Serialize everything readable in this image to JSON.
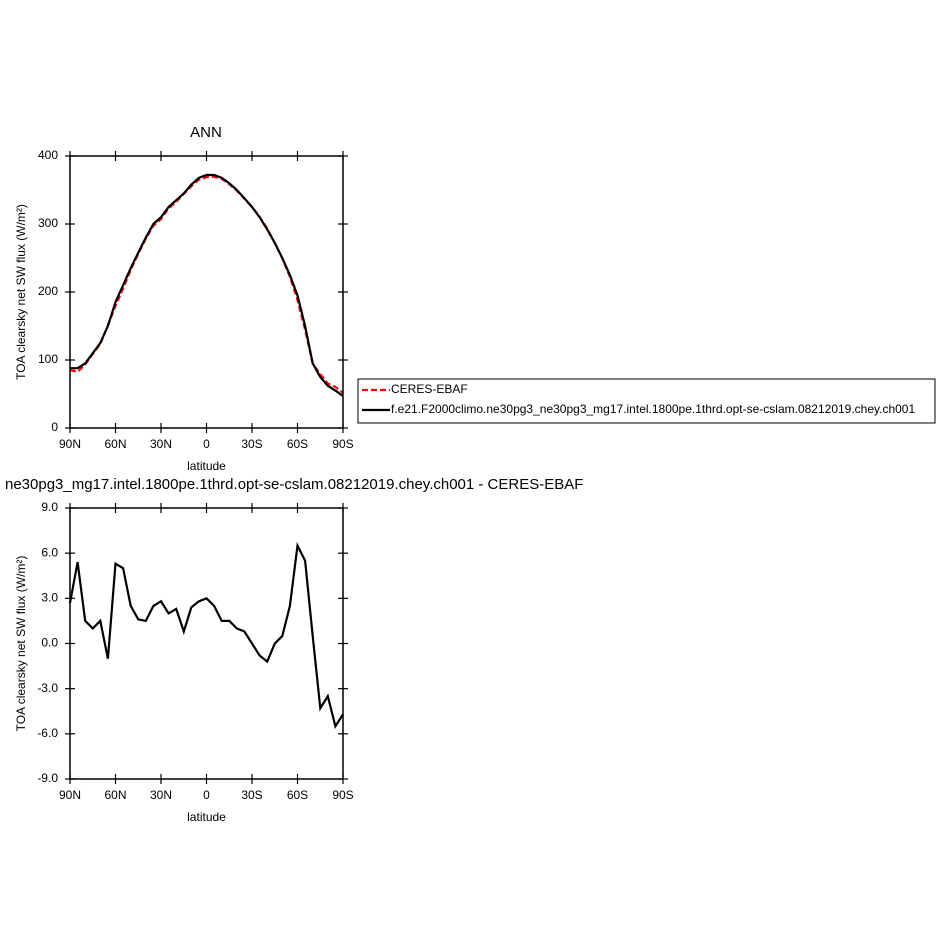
{
  "chart_data": [
    {
      "type": "line",
      "title": "ANN",
      "x_label": "latitude",
      "y_label": "TOA clearsky net SW flux (W/m²)",
      "x": [
        90,
        85,
        80,
        75,
        70,
        65,
        60,
        55,
        50,
        45,
        40,
        35,
        30,
        25,
        20,
        15,
        10,
        5,
        0,
        -5,
        -10,
        -15,
        -20,
        -25,
        -30,
        -35,
        -40,
        -45,
        -50,
        -55,
        -60,
        -65,
        -70,
        -75,
        -80,
        -85,
        -90
      ],
      "series": [
        {
          "name": "CERES-EBAF",
          "color": "#ff0000",
          "dash": true,
          "values": [
            85.3,
            82.6,
            93.5,
            109,
            123.5,
            151,
            179.7,
            205,
            232.5,
            256.4,
            278.5,
            297.5,
            307.2,
            323,
            332.7,
            344.2,
            355.6,
            365.2,
            369,
            369.5,
            366.5,
            358.5,
            349,
            337.2,
            325,
            310.8,
            293.2,
            272,
            249.5,
            222.5,
            188.5,
            144.5,
            94.5,
            79.3,
            65.5,
            60.5,
            51.7
          ]
        },
        {
          "name": "f.e21.F2000climo.ne30pg3_ne30pg3_mg17.intel.1800pe.1thrd.opt-se-cslam.08212019.chey.ch001",
          "color": "#000000",
          "dash": false,
          "values": [
            88,
            88,
            95,
            110,
            125,
            150,
            185,
            210,
            235,
            258,
            280,
            300,
            310,
            325,
            335,
            345,
            358,
            368,
            372,
            372,
            368,
            360,
            350,
            338,
            325,
            310,
            292,
            272,
            250,
            225,
            195,
            150,
            95,
            75,
            62,
            55,
            47
          ]
        }
      ],
      "xlim": [
        90,
        -90
      ],
      "xticks": [
        {
          "value": 90,
          "label": "90N"
        },
        {
          "value": 60,
          "label": "60N"
        },
        {
          "value": 30,
          "label": "30N"
        },
        0,
        {
          "value": -30,
          "label": "30S"
        },
        {
          "value": -60,
          "label": "60S"
        },
        {
          "value": -90,
          "label": "90S"
        }
      ],
      "ylim": [
        0,
        400
      ],
      "yticks": [
        0,
        100,
        200,
        300,
        400
      ]
    },
    {
      "type": "line",
      "title": "ne30pg3_mg17.intel.1800pe.1thrd.opt-se-cslam.08212019.chey.ch001 - CERES-EBAF",
      "x_label": "latitude",
      "y_label": "TOA clearsky net SW flux (W/m²)",
      "x": [
        90,
        85,
        80,
        75,
        70,
        65,
        60,
        55,
        50,
        45,
        40,
        35,
        30,
        25,
        20,
        15,
        10,
        5,
        0,
        -5,
        -10,
        -15,
        -20,
        -25,
        -30,
        -35,
        -40,
        -45,
        -50,
        -55,
        -60,
        -65,
        -70,
        -75,
        -80,
        -85,
        -90
      ],
      "series": [
        {
          "color": "#000000",
          "dash": false,
          "values": [
            2.7,
            5.4,
            1.5,
            1.0,
            1.5,
            -1.0,
            5.3,
            5.0,
            2.5,
            1.6,
            1.5,
            2.5,
            2.8,
            2.0,
            2.3,
            0.8,
            2.4,
            2.8,
            3.0,
            2.5,
            1.5,
            1.5,
            1.0,
            0.8,
            0.0,
            -0.8,
            -1.2,
            0.0,
            0.5,
            2.5,
            6.5,
            5.5,
            0.5,
            -4.3,
            -3.5,
            -5.5,
            -4.7
          ]
        }
      ],
      "xlim": [
        90,
        -90
      ],
      "xticks": [
        {
          "value": 90,
          "label": "90N"
        },
        {
          "value": 60,
          "label": "60N"
        },
        {
          "value": 30,
          "label": "30N"
        },
        0,
        {
          "value": -30,
          "label": "30S"
        },
        {
          "value": -60,
          "label": "60S"
        },
        {
          "value": -90,
          "label": "90S"
        }
      ],
      "ylim": [
        -9,
        9
      ],
      "yticks": [
        {
          "value": -9,
          "label": "-9.0"
        },
        {
          "value": -6,
          "label": "-6.0"
        },
        {
          "value": -3,
          "label": "-3.0"
        },
        {
          "value": 0,
          "label": "0.0"
        },
        {
          "value": 3,
          "label": "3.0"
        },
        {
          "value": 6,
          "label": "6.0"
        },
        {
          "value": 9,
          "label": "9.0"
        }
      ]
    }
  ]
}
